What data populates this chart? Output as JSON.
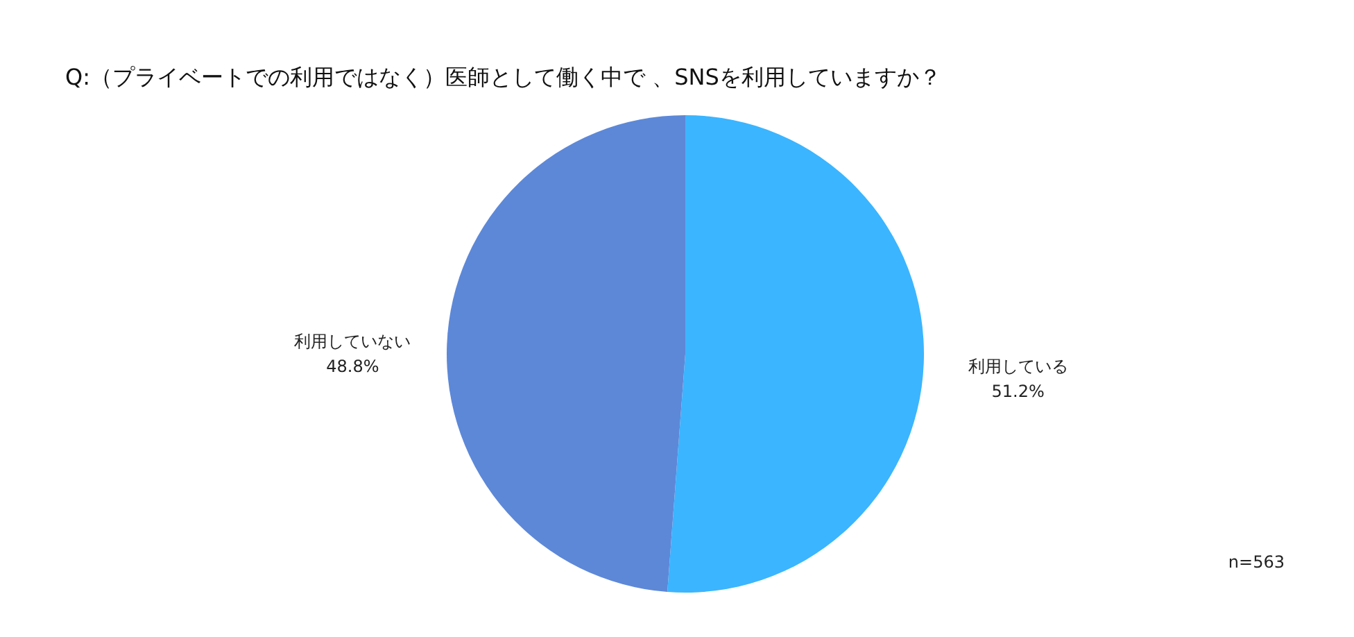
{
  "chart_data": {
    "type": "pie",
    "title": "Q:（プライベートでの利用ではなく）医師として働く中で 、SNSを利用していますか？",
    "categories": [
      "利用している",
      "利用していない"
    ],
    "values": [
      51.2,
      48.8
    ],
    "value_labels": [
      "51.2%",
      "48.8%"
    ],
    "colors": [
      "#3bb5ff",
      "#5d88d8"
    ],
    "annotations": [
      "n=563"
    ],
    "legend": false
  }
}
